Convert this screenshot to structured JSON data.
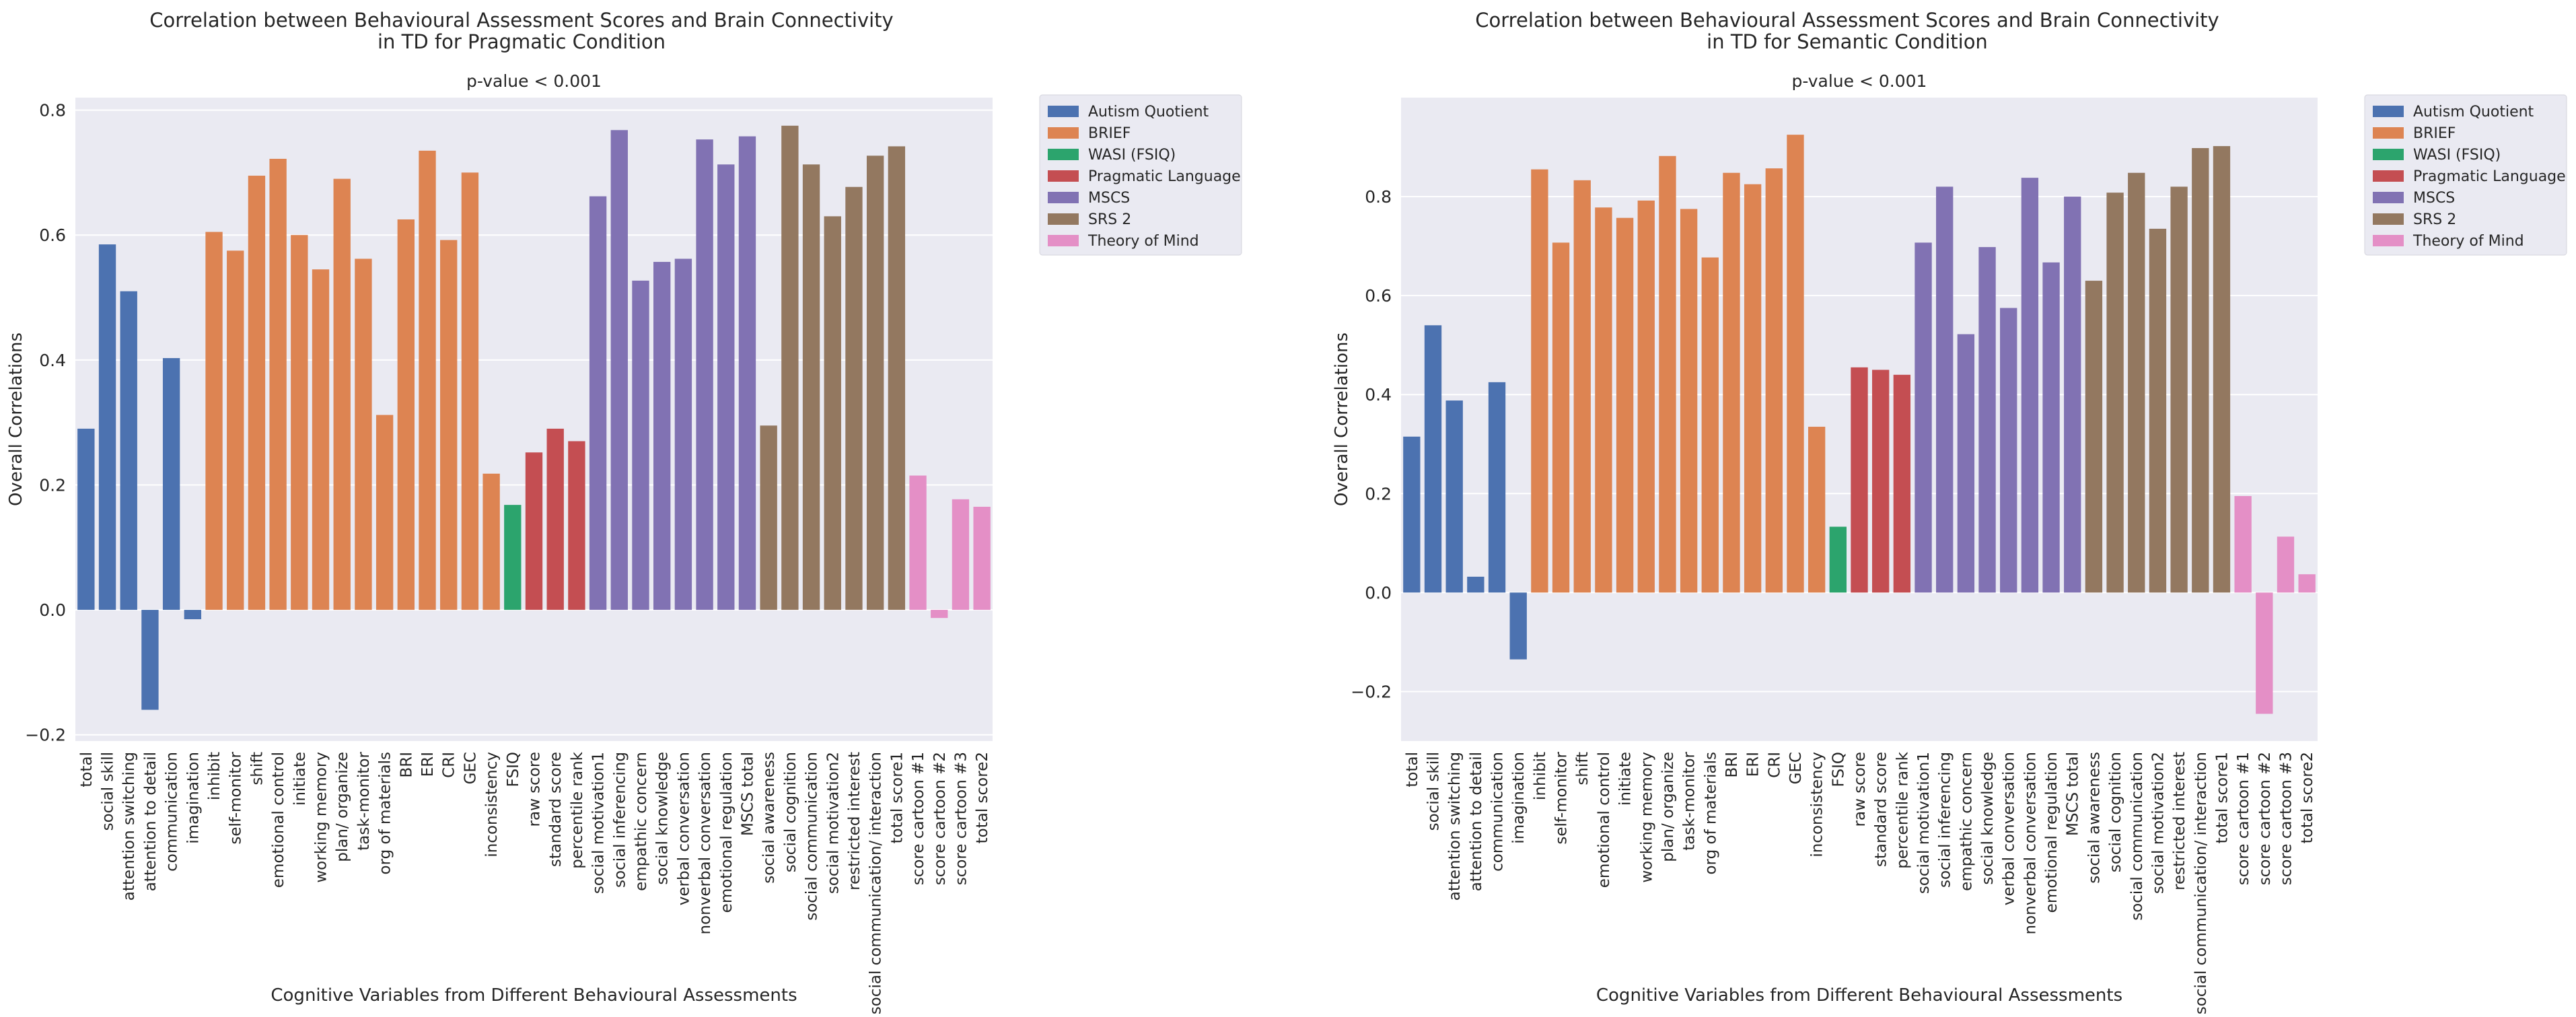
{
  "chart_data": [
    {
      "type": "bar",
      "title": "Correlation between Behavioural Assessment Scores and Brain Connectivity\nin TD for Pragmatic Condition",
      "subtitle": "p-value < 0.001",
      "xlabel": "Cognitive Variables from Different Behavioural Assessments",
      "ylabel": "Overall Correlations",
      "ylim": [
        -0.21,
        0.82
      ],
      "yticks": [
        -0.2,
        0.0,
        0.2,
        0.4,
        0.6,
        0.8
      ],
      "ytick_labels": [
        "−0.2",
        "0.0",
        "0.2",
        "0.4",
        "0.6",
        "0.8"
      ],
      "grid": true,
      "legend_position": "outside top-right",
      "categories": [
        "total",
        "social skill",
        "attention switching",
        "attention to detail",
        "communication",
        "imagination",
        "inhibit",
        "self-monitor",
        "shift",
        "emotional control",
        "initiate",
        "working memory",
        "plan/ organize",
        "task-monitor",
        "org of materials",
        "BRI",
        "ERI",
        "CRI",
        "GEC",
        "inconsistency",
        "FSIQ",
        "raw score",
        "standard score",
        "percentile rank",
        "social motivation1",
        "social inferencing",
        "empathic concern",
        "social knowledge",
        "verbal conversation",
        "nonverbal conversation",
        "emotional regulation",
        "MSCS total",
        "social awareness",
        "social cognition",
        "social communication",
        "social motivation2",
        "restricted interest",
        "social communication/ interaction",
        "total score1",
        "score cartoon #1",
        "score cartoon #2",
        "score cartoon #3",
        "total score2"
      ],
      "values": [
        0.29,
        0.585,
        0.51,
        -0.16,
        0.403,
        -0.015,
        0.605,
        0.575,
        0.695,
        0.722,
        0.6,
        0.545,
        0.69,
        0.562,
        0.312,
        0.625,
        0.735,
        0.592,
        0.7,
        0.218,
        0.168,
        0.252,
        0.29,
        0.27,
        0.662,
        0.768,
        0.527,
        0.557,
        0.562,
        0.753,
        0.713,
        0.758,
        0.295,
        0.775,
        0.713,
        0.63,
        0.677,
        0.727,
        0.742,
        0.215,
        -0.013,
        0.177,
        0.165
      ],
      "groups": [
        0,
        0,
        0,
        0,
        0,
        0,
        1,
        1,
        1,
        1,
        1,
        1,
        1,
        1,
        1,
        1,
        1,
        1,
        1,
        1,
        2,
        3,
        3,
        3,
        4,
        4,
        4,
        4,
        4,
        4,
        4,
        4,
        5,
        5,
        5,
        5,
        5,
        5,
        5,
        6,
        6,
        6,
        6
      ]
    },
    {
      "type": "bar",
      "title": "Correlation between Behavioural Assessment Scores and Brain Connectivity\nin TD for Semantic Condition",
      "subtitle": "p-value < 0.001",
      "xlabel": "Cognitive Variables from Different Behavioural Assessments",
      "ylabel": "Overall Correlations",
      "ylim": [
        -0.3,
        1.0
      ],
      "yticks": [
        -0.2,
        0.0,
        0.2,
        0.4,
        0.6,
        0.8
      ],
      "ytick_labels": [
        "−0.2",
        "0.0",
        "0.2",
        "0.4",
        "0.6",
        "0.8"
      ],
      "grid": true,
      "legend_position": "outside top-right",
      "categories": [
        "total",
        "social skill",
        "attention switching",
        "attention to detail",
        "communication",
        "imagination",
        "inhibit",
        "self-monitor",
        "shift",
        "emotional control",
        "initiate",
        "working memory",
        "plan/ organize",
        "task-monitor",
        "org of materials",
        "BRI",
        "ERI",
        "CRI",
        "GEC",
        "inconsistency",
        "FSIQ",
        "raw score",
        "standard score",
        "percentile rank",
        "social motivation1",
        "social inferencing",
        "empathic concern",
        "social knowledge",
        "verbal conversation",
        "nonverbal conversation",
        "emotional regulation",
        "MSCS total",
        "social awareness",
        "social cognition",
        "social communication",
        "social motivation2",
        "restricted interest",
        "social communication/ interaction",
        "total score1",
        "score cartoon #1",
        "score cartoon #2",
        "score cartoon #3",
        "total score2"
      ],
      "values": [
        0.315,
        0.54,
        0.388,
        0.032,
        0.425,
        -0.135,
        0.855,
        0.707,
        0.833,
        0.778,
        0.757,
        0.792,
        0.882,
        0.775,
        0.677,
        0.848,
        0.825,
        0.857,
        0.925,
        0.335,
        0.133,
        0.455,
        0.45,
        0.44,
        0.707,
        0.82,
        0.522,
        0.698,
        0.575,
        0.838,
        0.667,
        0.8,
        0.63,
        0.808,
        0.848,
        0.735,
        0.82,
        0.898,
        0.902,
        0.195,
        -0.245,
        0.113,
        0.037
      ],
      "groups": [
        0,
        0,
        0,
        0,
        0,
        0,
        1,
        1,
        1,
        1,
        1,
        1,
        1,
        1,
        1,
        1,
        1,
        1,
        1,
        1,
        2,
        3,
        3,
        3,
        4,
        4,
        4,
        4,
        4,
        4,
        4,
        4,
        5,
        5,
        5,
        5,
        5,
        5,
        5,
        6,
        6,
        6,
        6
      ]
    }
  ],
  "legend": [
    {
      "label": "Autism Quotient",
      "color": "#4c72b0"
    },
    {
      "label": "BRIEF",
      "color": "#dd8452"
    },
    {
      "label": "WASI (FSIQ)",
      "color": "#2ca46d"
    },
    {
      "label": "Pragmatic Language",
      "color": "#c44e52"
    },
    {
      "label": "MSCS",
      "color": "#8172b3"
    },
    {
      "label": "SRS 2",
      "color": "#937860"
    },
    {
      "label": "Theory of Mind",
      "color": "#e48fc6"
    }
  ],
  "colors": {
    "plot_bg": "#eaeaf2",
    "grid": "#ffffff",
    "page_bg": "#ffffff"
  }
}
